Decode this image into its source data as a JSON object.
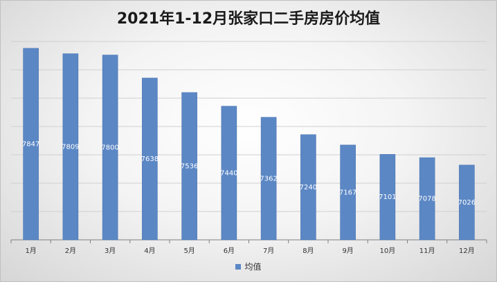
{
  "chart_data": {
    "type": "bar",
    "title": "2021年1-12月张家口二手房房价均值",
    "categories": [
      "1月",
      "2月",
      "3月",
      "4月",
      "5月",
      "6月",
      "7月",
      "8月",
      "9月",
      "10月",
      "11月",
      "12月"
    ],
    "series": [
      {
        "name": "均值",
        "values": [
          7847,
          7809,
          7800,
          7638,
          7536,
          7440,
          7362,
          7240,
          7167,
          7101,
          7078,
          7026
        ]
      }
    ],
    "ylim": [
      6500,
      7900
    ],
    "grid": true,
    "legend": "bottom",
    "bar_color": "#5b87c5",
    "label_color": "#ffffff"
  }
}
